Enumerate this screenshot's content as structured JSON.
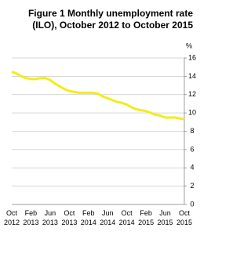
{
  "chart_data": {
    "type": "line",
    "title_lines": [
      "Figure 1 Monthly unemployment rate",
      "(ILO), October 2012 to October 2015"
    ],
    "y_unit": "%",
    "categories": [
      "Oct 2012",
      null,
      null,
      null,
      "Feb 2013",
      null,
      null,
      null,
      "Jun 2013",
      null,
      null,
      null,
      "Oct 2013",
      null,
      null,
      null,
      "Feb 2014",
      null,
      null,
      null,
      "Jun 2014",
      null,
      null,
      null,
      "Oct 2014",
      null,
      null,
      null,
      "Feb 2015",
      null,
      null,
      null,
      "Jun 2015",
      null,
      null,
      null,
      "Oct 2015"
    ],
    "values": [
      14.5,
      14.3,
      14.0,
      13.8,
      13.7,
      13.7,
      13.8,
      13.8,
      13.6,
      13.2,
      12.9,
      12.6,
      12.4,
      12.3,
      12.2,
      12.2,
      12.2,
      12.2,
      12.1,
      11.8,
      11.6,
      11.4,
      11.2,
      11.1,
      10.9,
      10.6,
      10.4,
      10.3,
      10.2,
      10.0,
      9.8,
      9.7,
      9.5,
      9.5,
      9.5,
      9.4,
      9.3
    ],
    "color": "#f3ec1a",
    "ylim": [
      0,
      16
    ],
    "yticks": [
      0,
      2,
      4,
      6,
      8,
      10,
      12,
      14,
      16
    ],
    "grid": true
  }
}
